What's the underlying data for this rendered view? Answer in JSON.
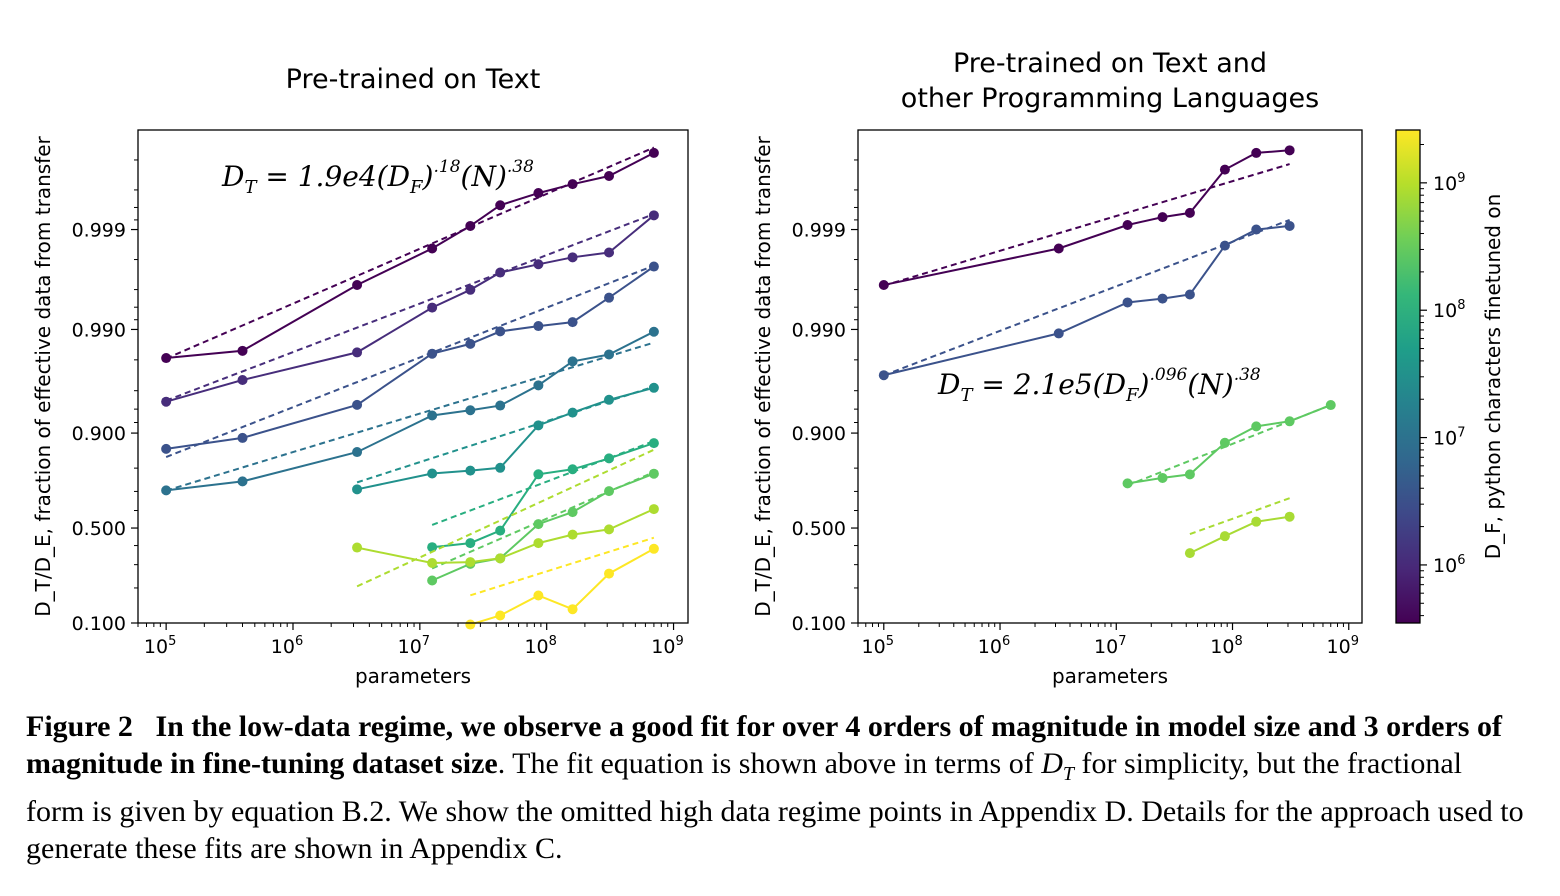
{
  "chart_data": [
    {
      "type": "line",
      "title": "Pre-trained on Text",
      "xlabel": "parameters",
      "ylabel": "D_T/D_E, fraction of effective data from transfer",
      "x_scale": "log",
      "y_scale": "logit",
      "xlim": [
        60000,
        1300000000
      ],
      "ylim": [
        0.1,
        0.9999
      ],
      "x_ticks": [
        {
          "base": "10",
          "exp": "5"
        },
        {
          "base": "10",
          "exp": "6"
        },
        {
          "base": "10",
          "exp": "7"
        },
        {
          "base": "10",
          "exp": "8"
        },
        {
          "base": "10",
          "exp": "9"
        }
      ],
      "y_tick_labels": [
        "0.100",
        "0.500",
        "0.900",
        "0.990",
        "0.999"
      ],
      "equation": {
        "lhs": "D",
        "lhs_sub": "T",
        "coef": "= 1.9e4(D",
        "df_sub": "F",
        "exp1": ".18",
        "mid": "(N)",
        "exp2": ".38"
      },
      "series": [
        {
          "color": "#440154",
          "x": [
            100000.0,
            400000.0,
            3200000.0,
            12500000.0,
            25000000.0,
            43000000.0,
            86000000.0,
            160000000.0,
            310000000.0,
            700000000.0
          ],
          "y": [
            0.9808,
            0.9837,
            0.9964,
            0.99845,
            0.99908,
            0.99943,
            0.99957,
            0.99965,
            0.99971,
            0.99983
          ],
          "fit_x": [
            100000.0,
            700000000.0
          ],
          "fit_y": [
            0.9806,
            0.99985
          ]
        },
        {
          "color": "#472d7b",
          "x": [
            100000.0,
            400000.0,
            3200000.0,
            12500000.0,
            25000000.0,
            43000000.0,
            86000000.0,
            160000000.0,
            310000000.0,
            700000000.0
          ],
          "y": [
            0.949,
            0.9685,
            0.9831,
            0.99395,
            0.99598,
            0.9973,
            0.99777,
            0.9981,
            0.9983,
            0.99928
          ],
          "fit_x": [
            100000.0,
            700000000.0
          ],
          "fit_y": [
            0.9502,
            0.9993
          ]
        },
        {
          "color": "#3b528b",
          "x": [
            100000.0,
            400000.0,
            3200000.0,
            12500000.0,
            25000000.0,
            43000000.0,
            86000000.0,
            160000000.0,
            310000000.0,
            700000000.0
          ],
          "y": [
            0.862,
            0.8895,
            0.9453,
            0.9826,
            0.9861,
            0.98955,
            0.99075,
            0.99155,
            0.99518,
            0.99765
          ],
          "fit_x": [
            100000.0,
            700000000.0
          ],
          "fit_y": [
            0.838,
            0.9977
          ]
        },
        {
          "color": "#2c728e",
          "x": [
            100000.0,
            400000.0,
            3200000.0,
            12500000.0,
            25000000.0,
            43000000.0,
            86000000.0,
            160000000.0,
            310000000.0,
            700000000.0
          ],
          "y": [
            0.705,
            0.7465,
            0.853,
            0.9311,
            0.9385,
            0.9445,
            0.9645,
            0.9793,
            0.9823,
            0.98946
          ],
          "fit_x": [
            100000.0,
            700000000.0
          ],
          "fit_y": [
            0.704,
            0.9865
          ]
        },
        {
          "color": "#21918c",
          "x": [
            3200000.0,
            12500000.0,
            25000000.0,
            43000000.0,
            86000000.0,
            160000000.0,
            310000000.0,
            700000000.0
          ],
          "y": [
            0.71,
            0.7793,
            0.7906,
            0.8012,
            0.915,
            0.9353,
            0.9511,
            0.9625
          ],
          "fit_x": [
            3200000.0,
            700000000.0
          ],
          "fit_y": [
            0.742,
            0.9635
          ]
        },
        {
          "color": "#28ae80",
          "x": [
            12500000.0,
            25000000.0,
            43000000.0,
            86000000.0,
            160000000.0,
            310000000.0,
            700000000.0
          ],
          "y": [
            0.391,
            0.4138,
            0.485,
            0.7762,
            0.7958,
            0.8337,
            0.877
          ],
          "fit_x": [
            12500000.0,
            700000000.0
          ],
          "fit_y": [
            0.518,
            0.882
          ]
        },
        {
          "color": "#5ec962",
          "x": [
            12500000.0,
            25000000.0,
            43000000.0,
            86000000.0,
            160000000.0,
            310000000.0,
            700000000.0
          ],
          "y": [
            0.229,
            0.3041,
            0.3317,
            0.5225,
            0.5911,
            0.7015,
            0.7785
          ],
          "fit_x": [
            12500000.0,
            700000000.0
          ],
          "fit_y": [
            0.282,
            0.785
          ]
        },
        {
          "color": "#addc30",
          "x": [
            3200000.0,
            12500000.0,
            25000000.0,
            43000000.0,
            86000000.0,
            160000000.0,
            310000000.0,
            700000000.0
          ],
          "y": [
            0.389,
            0.308,
            0.3126,
            0.3317,
            0.4138,
            0.4619,
            0.4923,
            0.6079
          ],
          "fit_x": [
            3200000.0,
            700000000.0
          ],
          "fit_y": [
            0.206,
            0.8595
          ]
        },
        {
          "color": "#fde725",
          "x": [
            25000000.0,
            43000000.0,
            86000000.0,
            160000000.0,
            310000000.0,
            700000000.0
          ],
          "y": [
            0.0968,
            0.1167,
            0.1735,
            0.1326,
            0.2585,
            0.3822
          ],
          "fit_x": [
            25000000.0,
            700000000.0
          ],
          "fit_y": [
            0.174,
            0.4442
          ]
        }
      ]
    },
    {
      "type": "line",
      "title": "Pre-trained on Text and\nother Programming Languages",
      "title_lines": [
        "Pre-trained on Text and",
        "other Programming Languages"
      ],
      "xlabel": "parameters",
      "ylabel": "D_T/D_E, fraction of effective data from transfer",
      "x_scale": "log",
      "y_scale": "logit",
      "xlim": [
        60000,
        1300000000
      ],
      "ylim": [
        0.1,
        0.9999
      ],
      "x_ticks": [
        {
          "base": "10",
          "exp": "5"
        },
        {
          "base": "10",
          "exp": "6"
        },
        {
          "base": "10",
          "exp": "7"
        },
        {
          "base": "10",
          "exp": "8"
        },
        {
          "base": "10",
          "exp": "9"
        }
      ],
      "y_tick_labels": [
        "0.100",
        "0.500",
        "0.900",
        "0.990",
        "0.999"
      ],
      "equation": {
        "lhs": "D",
        "lhs_sub": "T",
        "coef": "= 2.1e5(D",
        "df_sub": "F",
        "exp1": ".096",
        "mid": "(N)",
        "exp2": ".38"
      },
      "colorbar": {
        "label": "D_F, python characters finetuned on",
        "ticks": [
          {
            "base": "10",
            "exp": "6"
          },
          {
            "base": "10",
            "exp": "7"
          },
          {
            "base": "10",
            "exp": "8"
          },
          {
            "base": "10",
            "exp": "9"
          }
        ],
        "colormap": [
          "#440154",
          "#482878",
          "#3e4989",
          "#31688e",
          "#26828e",
          "#1f9e89",
          "#35b779",
          "#6ece58",
          "#b5de2b",
          "#fde725"
        ],
        "range": [
          350000,
          2600000000
        ]
      },
      "series": [
        {
          "color": "#440154",
          "x": [
            100000.0,
            3200000.0,
            12500000.0,
            25000000.0,
            43000000.0,
            86000000.0,
            160000000.0,
            310000000.0
          ],
          "y": [
            0.9964,
            0.99845,
            0.9991,
            0.99925,
            0.99932,
            0.99975,
            0.99983,
            0.99984
          ],
          "fit_x": [
            100000.0,
            310000000.0
          ],
          "fit_y": [
            0.99635,
            0.99978
          ]
        },
        {
          "color": "#3b528b",
          "x": [
            100000.0,
            3200000.0,
            12500000.0,
            25000000.0,
            43000000.0,
            86000000.0,
            160000000.0,
            310000000.0
          ],
          "y": [
            0.9717,
            0.98905,
            0.99462,
            0.99508,
            0.99552,
            0.99855,
            0.999,
            0.99908
          ],
          "fit_x": [
            100000.0,
            310000000.0
          ],
          "fit_y": [
            0.9716,
            0.9992
          ]
        },
        {
          "color": "#5ec962",
          "x": [
            12500000.0,
            25000000.0,
            43000000.0,
            86000000.0,
            160000000.0,
            310000000.0,
            700000000.0
          ],
          "y": [
            0.7377,
            0.7612,
            0.7758,
            0.8779,
            0.9131,
            0.922,
            0.9451
          ],
          "fit_x": [
            12500000.0,
            700000000.0
          ],
          "fit_y": [
            0.7286,
            0.9451
          ]
        },
        {
          "color": "#a8db34",
          "x": [
            43000000.0,
            86000000.0,
            160000000.0,
            310000000.0
          ],
          "y": [
            0.3589,
            0.4532,
            0.5367,
            0.5653
          ],
          "fit_x": [
            43000000.0,
            310000000.0
          ],
          "fit_y": [
            0.465,
            0.6661
          ]
        }
      ]
    }
  ],
  "caption": {
    "figure_number": "Figure 2",
    "bold_text": "In the low-data regime, we observe a good fit for over 4 orders of magnitude in model size and 3 orders of magnitude in fine-tuning dataset size",
    "text_1": ". The fit equation is shown above in terms of ",
    "dt": "D",
    "dt_sub": "T",
    "text_2": " for simplicity, but the fractional form is given by equation B.2. We show the omitted high data regime points in Appendix D. Details for the approach used to generate these fits are shown in Appendix C."
  }
}
